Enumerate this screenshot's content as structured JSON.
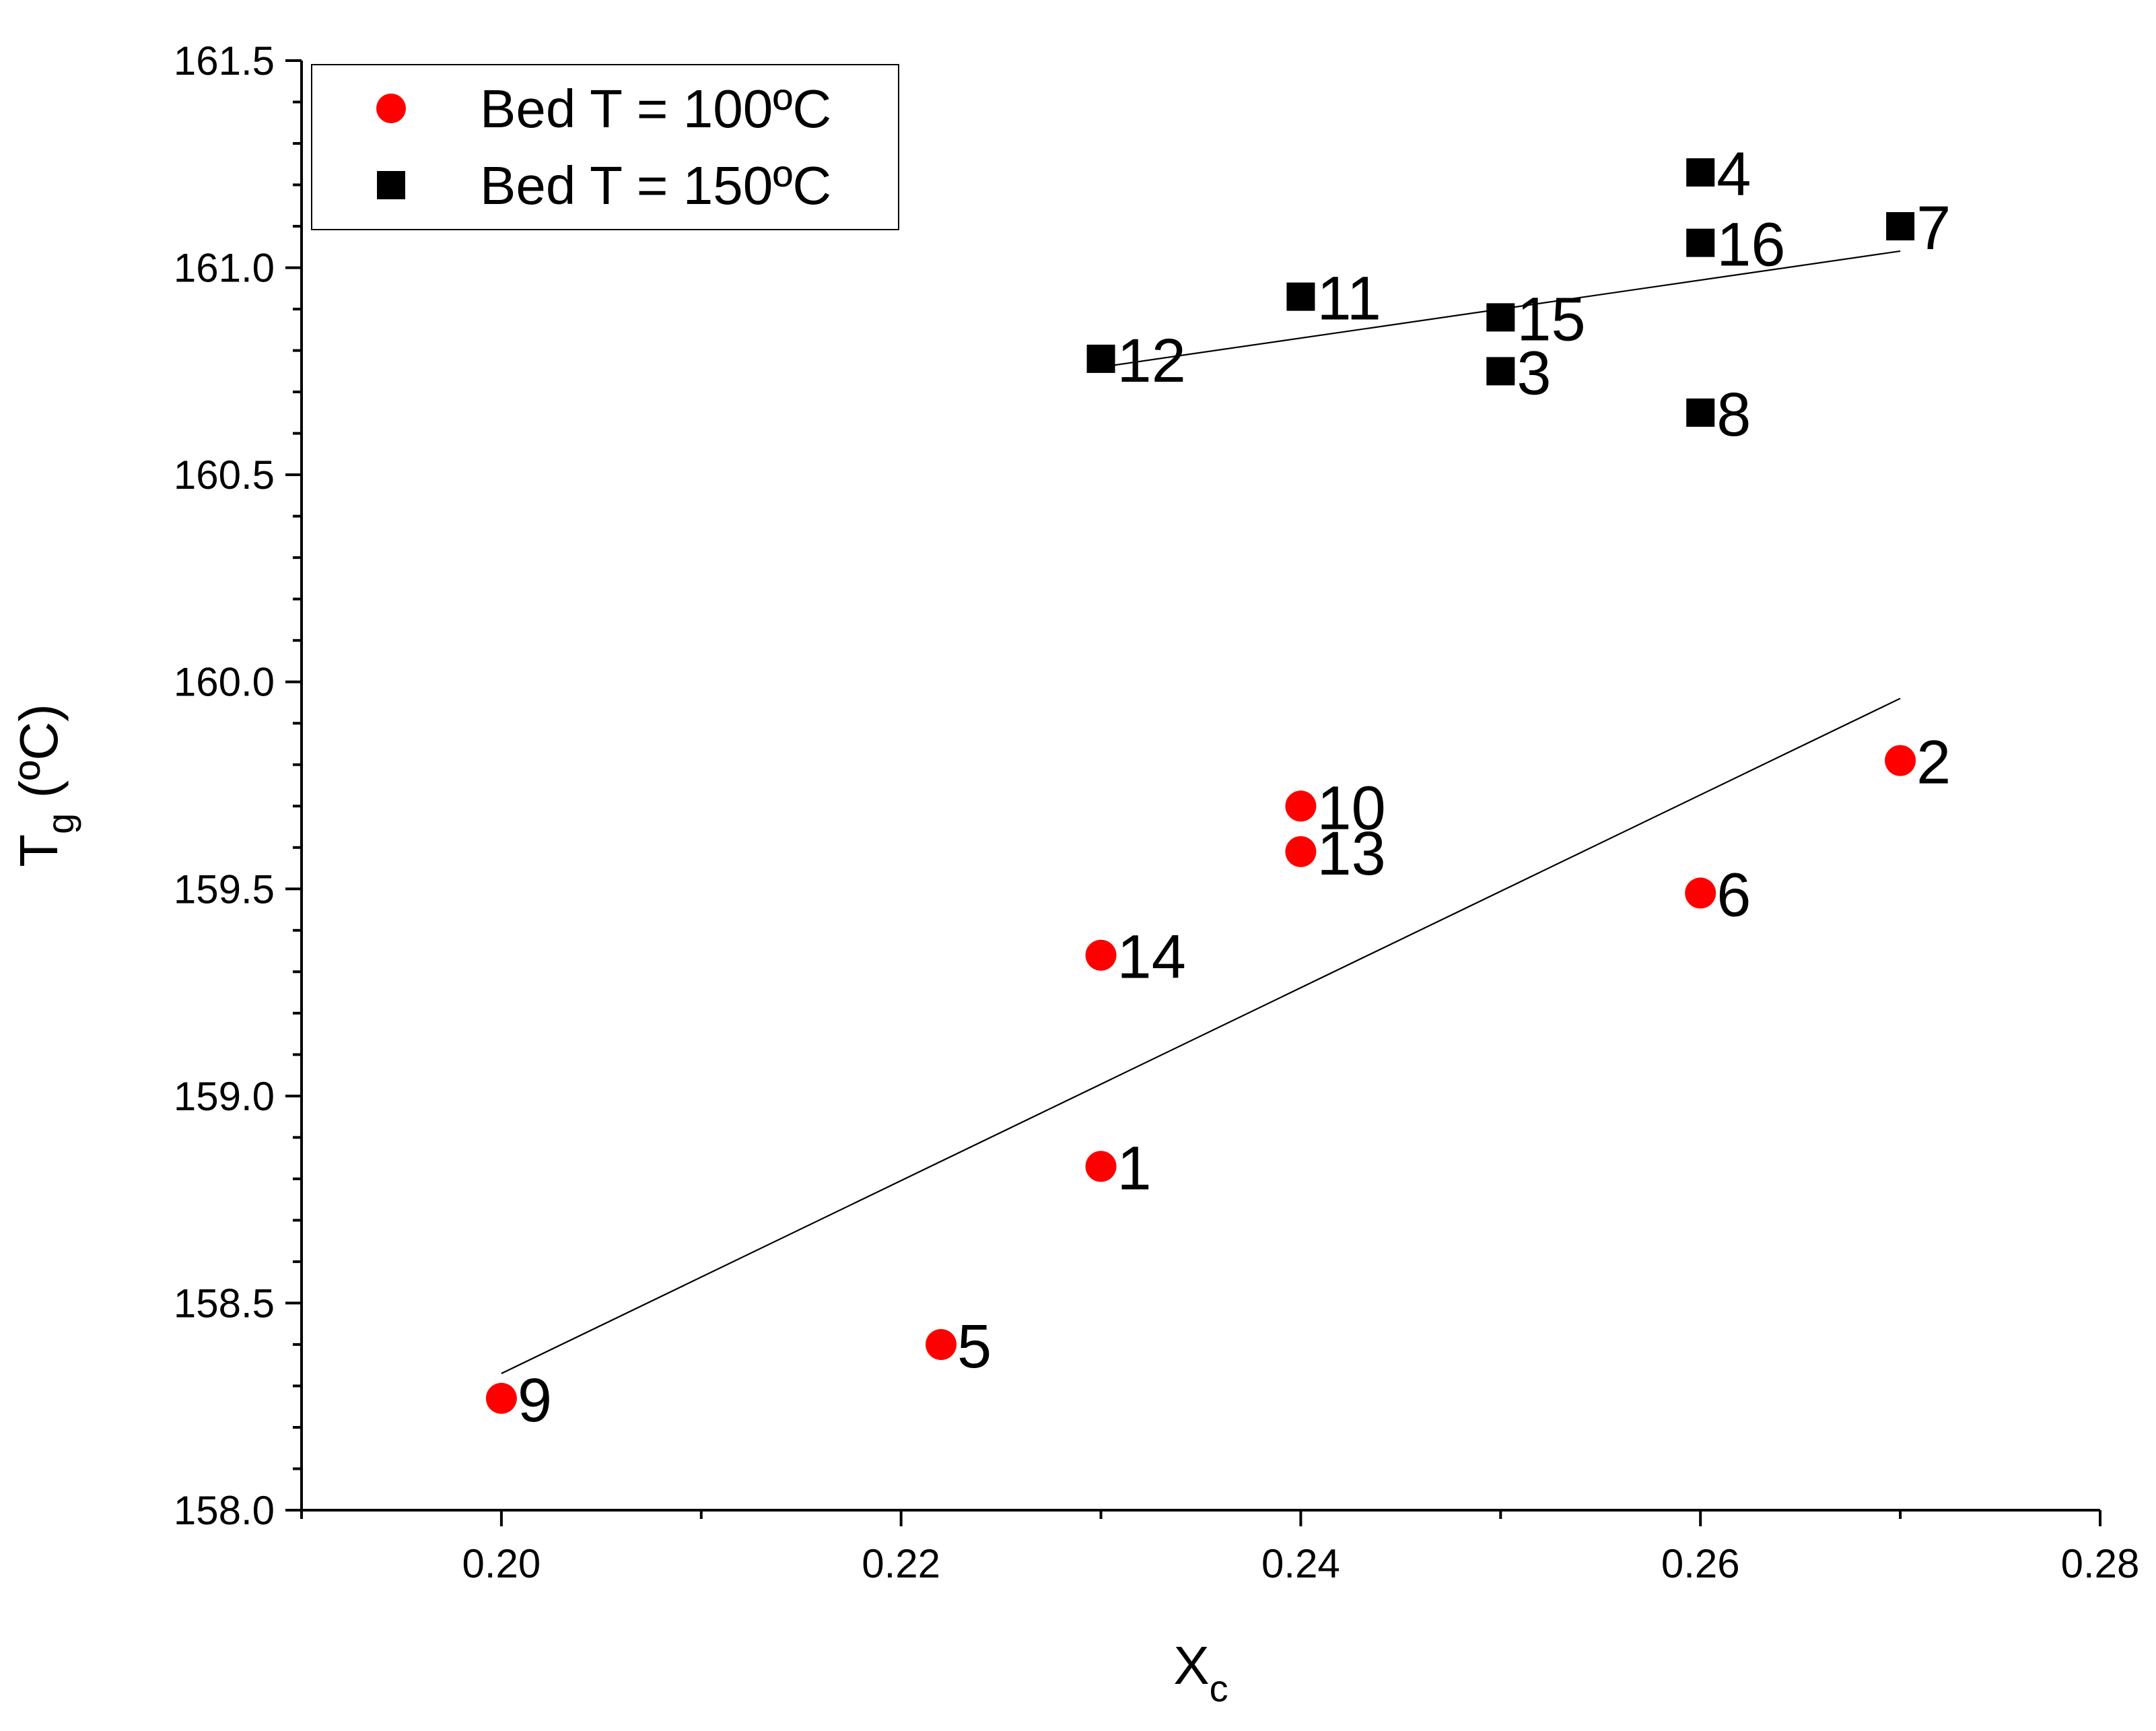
{
  "chart_data": {
    "type": "scatter",
    "title": "",
    "xlabel": "X",
    "xlabel_sub": "c",
    "ylabel": "T",
    "ylabel_sub": "g",
    "ylabel_unit": "(ºC)",
    "xlim": [
      0.19,
      0.28
    ],
    "ylim": [
      158.0,
      161.5
    ],
    "xticks": [
      "0.20",
      "0.22",
      "0.24",
      "0.26",
      "0.28"
    ],
    "yticks": [
      "158.0",
      "158.5",
      "159.0",
      "159.5",
      "160.0",
      "160.5",
      "161.0",
      "161.5"
    ],
    "legend_position": "top-left",
    "series": [
      {
        "name": "Bed T = 100ºC",
        "marker": "circle",
        "color": "#ff0000",
        "points": [
          {
            "label": "1",
            "x": 0.23,
            "y": 158.83
          },
          {
            "label": "2",
            "x": 0.27,
            "y": 159.81
          },
          {
            "label": "5",
            "x": 0.222,
            "y": 158.4
          },
          {
            "label": "6",
            "x": 0.26,
            "y": 159.49
          },
          {
            "label": "9",
            "x": 0.2,
            "y": 158.27
          },
          {
            "label": "10",
            "x": 0.24,
            "y": 159.7
          },
          {
            "label": "13",
            "x": 0.24,
            "y": 159.59
          },
          {
            "label": "14",
            "x": 0.23,
            "y": 159.34
          }
        ],
        "fit": {
          "x": [
            0.2,
            0.27
          ],
          "y": [
            158.33,
            159.96
          ]
        }
      },
      {
        "name": "Bed T = 150ºC",
        "marker": "square",
        "color": "#000000",
        "points": [
          {
            "label": "3",
            "x": 0.25,
            "y": 160.75
          },
          {
            "label": "4",
            "x": 0.26,
            "y": 161.23
          },
          {
            "label": "7",
            "x": 0.27,
            "y": 161.1
          },
          {
            "label": "8",
            "x": 0.26,
            "y": 160.65
          },
          {
            "label": "11",
            "x": 0.24,
            "y": 160.93
          },
          {
            "label": "12",
            "x": 0.23,
            "y": 160.78
          },
          {
            "label": "15",
            "x": 0.25,
            "y": 160.88
          },
          {
            "label": "16",
            "x": 0.26,
            "y": 161.06
          }
        ],
        "fit": {
          "x": [
            0.23,
            0.27
          ],
          "y": [
            160.76,
            161.04
          ]
        }
      }
    ]
  }
}
